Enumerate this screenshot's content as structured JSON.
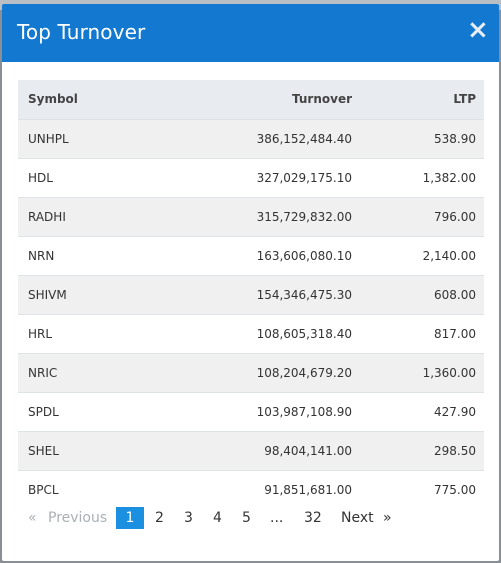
{
  "modal": {
    "title": "Top Turnover",
    "close_glyph": "×"
  },
  "table": {
    "headers": {
      "symbol": "Symbol",
      "turnover": "Turnover",
      "ltp": "LTP"
    },
    "rows": [
      {
        "symbol": "UNHPL",
        "turnover": "386,152,484.40",
        "ltp": "538.90"
      },
      {
        "symbol": "HDL",
        "turnover": "327,029,175.10",
        "ltp": "1,382.00"
      },
      {
        "symbol": "RADHI",
        "turnover": "315,729,832.00",
        "ltp": "796.00"
      },
      {
        "symbol": "NRN",
        "turnover": "163,606,080.10",
        "ltp": "2,140.00"
      },
      {
        "symbol": "SHIVM",
        "turnover": "154,346,475.30",
        "ltp": "608.00"
      },
      {
        "symbol": "HRL",
        "turnover": "108,605,318.40",
        "ltp": "817.00"
      },
      {
        "symbol": "NRIC",
        "turnover": "108,204,679.20",
        "ltp": "1,360.00"
      },
      {
        "symbol": "SPDL",
        "turnover": "103,987,108.90",
        "ltp": "427.90"
      },
      {
        "symbol": "SHEL",
        "turnover": "98,404,141.00",
        "ltp": "298.50"
      },
      {
        "symbol": "BPCL",
        "turnover": "91,851,681.00",
        "ltp": "775.00"
      }
    ]
  },
  "pagination": {
    "prev_arrow": "«",
    "previous": "Previous",
    "pages": [
      "1",
      "2",
      "3",
      "4",
      "5"
    ],
    "ellipsis": "...",
    "last_page": "32",
    "next": "Next",
    "next_arrow": "»",
    "active_page": "1"
  },
  "colors": {
    "header_bg": "#1378d0",
    "active_page_bg": "#1b8fe0"
  }
}
